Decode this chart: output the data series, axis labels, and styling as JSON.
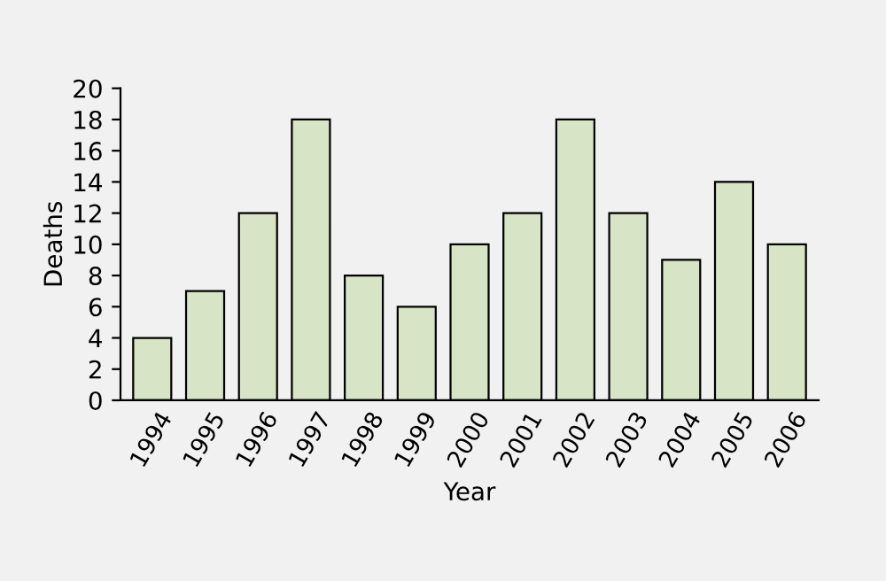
{
  "chart_data": {
    "type": "bar",
    "xlabel": "Year",
    "ylabel": "Deaths",
    "categories": [
      "1994",
      "1995",
      "1996",
      "1997",
      "1998",
      "1999",
      "2000",
      "2001",
      "2002",
      "2003",
      "2004",
      "2005",
      "2006"
    ],
    "values": [
      4,
      7,
      12,
      18,
      8,
      6,
      10,
      12,
      18,
      12,
      9,
      14,
      10
    ],
    "color": "#d7e4c5",
    "ylim": [
      0,
      20
    ],
    "yticks": [
      0,
      2,
      4,
      6,
      8,
      10,
      12,
      14,
      16,
      18,
      20
    ],
    "grid": false
  }
}
